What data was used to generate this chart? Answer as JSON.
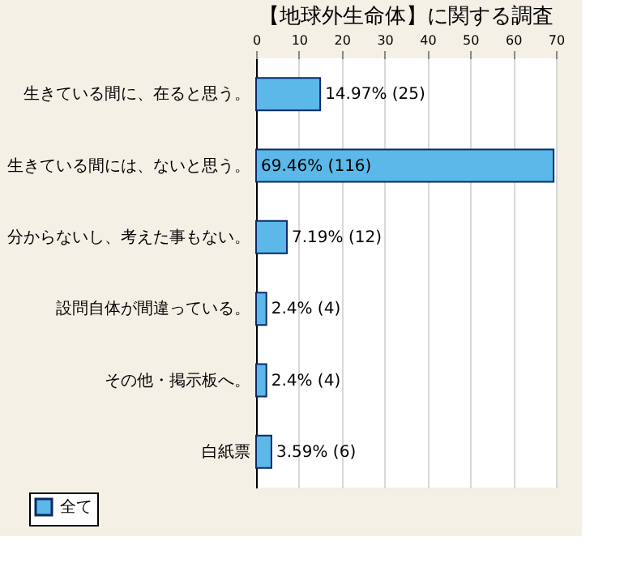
{
  "chart_data": {
    "type": "bar",
    "orientation": "horizontal",
    "title": "【地球外生命体】に関する調査",
    "categories": [
      "生きている間に、在ると思う。",
      "生きている間には、ないと思う。",
      "分からないし、考えた事もない。",
      "設問自体が間違っている。",
      "その他・掲示板へ。",
      "白紙票"
    ],
    "series": [
      {
        "name": "全て",
        "color": "#5bb8e8",
        "values": [
          14.97,
          69.46,
          7.19,
          2.4,
          2.4,
          3.59
        ],
        "value_labels": [
          "14.97% (25)",
          "69.46% (116)",
          "7.19% (12)",
          "2.4% (4)",
          "2.4% (4)",
          "3.59% (6)"
        ]
      }
    ],
    "xlim": [
      0,
      70
    ],
    "xticks": [
      0,
      10,
      20,
      30,
      40,
      50,
      60,
      70
    ],
    "grid": "x",
    "legend": "bottom left"
  }
}
